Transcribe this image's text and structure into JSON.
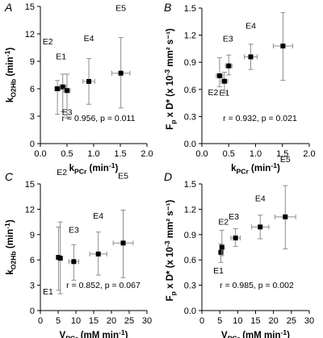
{
  "chart_data": [
    {
      "panel": "A",
      "type": "scatter",
      "xlabel_main": "k",
      "xlabel_sub": "PCr",
      "xlabel_tail": " (min",
      "xlabel_sup": "-1",
      "xlabel_end": ")",
      "ylabel_main": "k",
      "ylabel_sub": "O2Hb",
      "ylabel_tail": " (min",
      "ylabel_sup": "-1",
      "ylabel_end": ")",
      "xlim": [
        0,
        2.0
      ],
      "ylim": [
        0,
        15
      ],
      "xticks": [
        "0.0",
        "0.5",
        "1.0",
        "1.5",
        "2.0"
      ],
      "yticks": [
        "0",
        "3",
        "6",
        "9",
        "12",
        "15"
      ],
      "stat": "r = 0.956, p = 0.011",
      "points": [
        {
          "label": "E1",
          "x": 0.42,
          "y": 6.2,
          "xerr": 0.06,
          "yerr_lo": 2.7,
          "yerr_hi": 1.4
        },
        {
          "label": "E2",
          "x": 0.32,
          "y": 6.0,
          "xerr": 0.05,
          "yerr_lo": 2.8,
          "yerr_hi": 0.9
        },
        {
          "label": "E3",
          "x": 0.5,
          "y": 5.8,
          "xerr": 0.06,
          "yerr_lo": 3.0,
          "yerr_hi": 1.8
        },
        {
          "label": "E4",
          "x": 0.91,
          "y": 6.8,
          "xerr": 0.11,
          "yerr_lo": 2.5,
          "yerr_hi": 2.5
        },
        {
          "label": "E5",
          "x": 1.51,
          "y": 7.7,
          "xerr": 0.17,
          "yerr_lo": 3.8,
          "yerr_hi": 3.9
        }
      ]
    },
    {
      "panel": "B",
      "type": "scatter",
      "xlabel_main": "k",
      "xlabel_sub": "PCr",
      "xlabel_tail": " (min",
      "xlabel_sup": "-1",
      "xlabel_end": ")",
      "ylabel_main": "F",
      "ylabel_sub": "p",
      "ylabel_tail": " x D* (x 10",
      "ylabel_sup": "-3",
      "ylabel_end": " mm² s⁻¹)",
      "xlim": [
        0,
        2.0
      ],
      "ylim": [
        0,
        1.5
      ],
      "xticks": [
        "0.0",
        "0.5",
        "1.0",
        "1.5",
        "2.0"
      ],
      "yticks": [
        "0.0",
        "0.3",
        "0.6",
        "0.9",
        "1.2",
        "1.5"
      ],
      "stat": "r = 0.932, p = 0.021",
      "points": [
        {
          "label": "E1",
          "x": 0.42,
          "y": 0.69,
          "xerr": 0.06,
          "yerr_lo": 0.13,
          "yerr_hi": 0.1
        },
        {
          "label": "E2",
          "x": 0.33,
          "y": 0.75,
          "xerr": 0.06,
          "yerr_lo": 0.12,
          "yerr_hi": 0.2
        },
        {
          "label": "E3",
          "x": 0.5,
          "y": 0.86,
          "xerr": 0.06,
          "yerr_lo": 0.1,
          "yerr_hi": 0.12
        },
        {
          "label": "E4",
          "x": 0.91,
          "y": 0.96,
          "xerr": 0.12,
          "yerr_lo": 0.14,
          "yerr_hi": 0.14
        },
        {
          "label": "E5",
          "x": 1.51,
          "y": 1.08,
          "xerr": 0.18,
          "yerr_lo": 0.38,
          "yerr_hi": 0.37
        }
      ]
    },
    {
      "panel": "C",
      "type": "scatter",
      "xlabel_main": "V",
      "xlabel_sub": "PCr",
      "xlabel_tail": " (mM min",
      "xlabel_sup": "-1",
      "xlabel_end": ")",
      "ylabel_main": "k",
      "ylabel_sub": "O2Hb",
      "ylabel_tail": " (min",
      "ylabel_sup": "-1",
      "ylabel_end": ")",
      "xlim": [
        0,
        30
      ],
      "ylim": [
        0,
        15
      ],
      "xticks": [
        "0",
        "5",
        "10",
        "15",
        "20",
        "25",
        "30"
      ],
      "yticks": [
        "0",
        "3",
        "6",
        "9",
        "12",
        "15"
      ],
      "stat": "r = 0.852, p = 0.067",
      "points": [
        {
          "label": "E1",
          "x": 5.1,
          "y": 6.3,
          "xerr": 0.6,
          "yerr_lo": 3.9,
          "yerr_hi": 3.6
        },
        {
          "label": "E2",
          "x": 5.6,
          "y": 6.2,
          "xerr": 0.6,
          "yerr_lo": 4.2,
          "yerr_hi": 4.3
        },
        {
          "label": "E3",
          "x": 9.4,
          "y": 5.8,
          "xerr": 1.4,
          "yerr_lo": 2.2,
          "yerr_hi": 2.0
        },
        {
          "label": "E4",
          "x": 16.3,
          "y": 6.7,
          "xerr": 2.4,
          "yerr_lo": 2.5,
          "yerr_hi": 2.6
        },
        {
          "label": "E5",
          "x": 23.3,
          "y": 8.0,
          "xerr": 2.8,
          "yerr_lo": 4.1,
          "yerr_hi": 3.9
        }
      ]
    },
    {
      "panel": "D",
      "type": "scatter",
      "xlabel_main": "V",
      "xlabel_sub": "PCr",
      "xlabel_tail": " (mM min",
      "xlabel_sup": "-1",
      "xlabel_end": ")",
      "ylabel_main": "F",
      "ylabel_sub": "p",
      "ylabel_tail": " x D* (x 10",
      "ylabel_sup": "-3",
      "ylabel_end": " mm² s⁻¹)",
      "xlim": [
        0,
        30
      ],
      "ylim": [
        0,
        1.5
      ],
      "xticks": [
        "0",
        "5",
        "10",
        "15",
        "20",
        "25",
        "30"
      ],
      "yticks": [
        "0.0",
        "0.3",
        "0.6",
        "0.9",
        "1.2",
        "1.5"
      ],
      "stat": "r = 0.985, p = 0.002",
      "points": [
        {
          "label": "E1",
          "x": 5.3,
          "y": 0.69,
          "xerr": 0.6,
          "yerr_lo": 0.12,
          "yerr_hi": 0.1
        },
        {
          "label": "E2",
          "x": 5.6,
          "y": 0.75,
          "xerr": 0.6,
          "yerr_lo": 0.1,
          "yerr_hi": 0.2
        },
        {
          "label": "E3",
          "x": 9.4,
          "y": 0.86,
          "xerr": 1.3,
          "yerr_lo": 0.1,
          "yerr_hi": 0.11
        },
        {
          "label": "E4",
          "x": 16.3,
          "y": 0.99,
          "xerr": 2.4,
          "yerr_lo": 0.14,
          "yerr_hi": 0.14
        },
        {
          "label": "E5",
          "x": 23.3,
          "y": 1.11,
          "xerr": 2.9,
          "yerr_lo": 0.38,
          "yerr_hi": 0.37
        }
      ]
    }
  ]
}
